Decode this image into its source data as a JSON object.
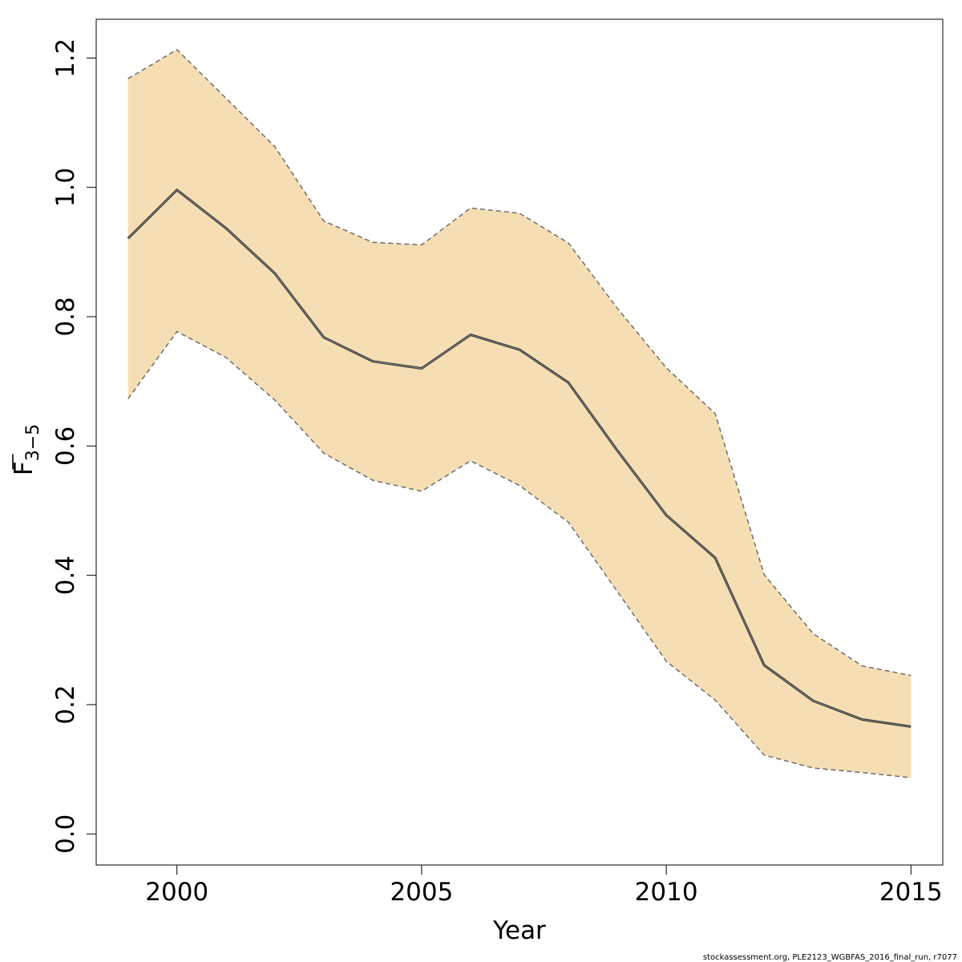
{
  "chart_data": {
    "type": "line",
    "title": "",
    "xlabel": "Year",
    "ylabel": {
      "main": "F",
      "subscript": "3−5",
      "overbar": true
    },
    "xlim": [
      1998.35,
      2015.65
    ],
    "ylim": [
      -0.048,
      1.26
    ],
    "x_ticks": [
      2000,
      2005,
      2010,
      2015
    ],
    "y_ticks": [
      0.0,
      0.2,
      0.4,
      0.6,
      0.8,
      1.0,
      1.2
    ],
    "x_tick_labels": [
      "2000",
      "2005",
      "2010",
      "2015"
    ],
    "y_tick_labels": [
      "0.0",
      "0.2",
      "0.4",
      "0.6",
      "0.8",
      "1.0",
      "1.2"
    ],
    "grid": false,
    "x": [
      1999,
      2000,
      2001,
      2002,
      2003,
      2004,
      2005,
      2006,
      2007,
      2008,
      2009,
      2010,
      2011,
      2012,
      2013,
      2014,
      2015
    ],
    "series": [
      {
        "name": "estimate",
        "style": "solid",
        "values": [
          0.921,
          0.996,
          0.937,
          0.867,
          0.768,
          0.731,
          0.72,
          0.772,
          0.749,
          0.698,
          0.593,
          0.493,
          0.427,
          0.261,
          0.206,
          0.177,
          0.166
        ]
      },
      {
        "name": "upper",
        "style": "dashed",
        "values": [
          1.168,
          1.213,
          1.138,
          1.063,
          0.948,
          0.915,
          0.911,
          0.968,
          0.96,
          0.914,
          0.813,
          0.721,
          0.65,
          0.401,
          0.31,
          0.26,
          0.245
        ]
      },
      {
        "name": "lower",
        "style": "dashed",
        "values": [
          0.673,
          0.777,
          0.737,
          0.671,
          0.589,
          0.547,
          0.53,
          0.577,
          0.539,
          0.482,
          0.375,
          0.267,
          0.207,
          0.122,
          0.102,
          0.095,
          0.087
        ]
      }
    ],
    "colors": {
      "band": "#F5DEB3",
      "line": "#333333",
      "dashed": "#6E6E6E",
      "axis": "#000000"
    }
  },
  "caption": "stockassessment.org, PLE2123_WGBFAS_2016_final_run, r7077"
}
